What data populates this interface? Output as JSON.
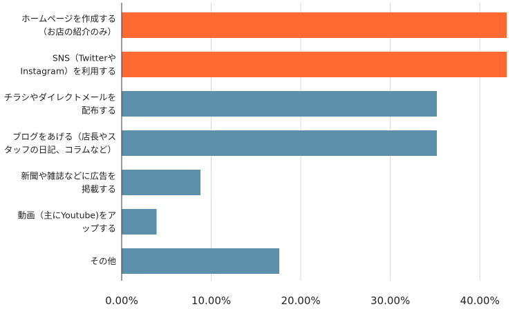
{
  "chart_data": {
    "type": "bar",
    "orientation": "horizontal",
    "title": "",
    "xlabel": "",
    "ylabel": "",
    "xlim": [
      0,
      43
    ],
    "grid": true,
    "legend": "none",
    "categories": [
      [
        "ホームページを作成する",
        "（お店の紹介のみ）"
      ],
      [
        "SNS（Twitterや",
        "Instagram）を利用する"
      ],
      [
        "チラシやダイレクトメールを",
        "配布する"
      ],
      [
        "ブログをあげる（店長やス",
        "タッフの日記、コラムなど）"
      ],
      [
        "新聞や雑誌などに広告を",
        "掲載する"
      ],
      [
        "動画（主にYoutube)をア",
        "ップする"
      ],
      [
        "その他"
      ]
    ],
    "values": [
      43,
      43,
      35.2,
      35.2,
      8.8,
      3.9,
      17.6
    ],
    "bar_colors": [
      "#ff6a33",
      "#ff6a33",
      "#5c8fa9",
      "#5c8fa9",
      "#5c8fa9",
      "#5c8fa9",
      "#5c8fa9"
    ],
    "tick_values": [
      0,
      10,
      20,
      30,
      40
    ],
    "tick_labels": [
      "0.00%",
      "10.00%",
      "20.00%",
      "30.00%",
      "40.00%"
    ],
    "colors": {
      "grid": "#d9d9d9",
      "axis": "#333333"
    }
  }
}
